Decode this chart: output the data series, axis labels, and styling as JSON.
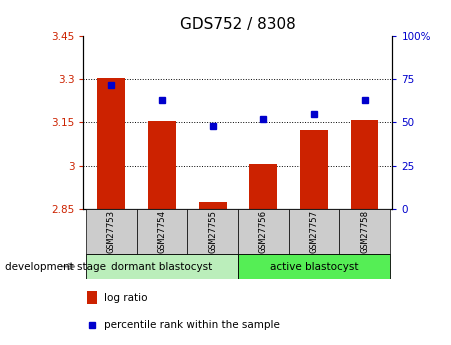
{
  "title": "GDS752 / 8308",
  "samples": [
    "GSM27753",
    "GSM27754",
    "GSM27755",
    "GSM27756",
    "GSM27757",
    "GSM27758"
  ],
  "log_ratio": [
    3.305,
    3.155,
    2.875,
    3.005,
    3.125,
    3.16
  ],
  "percentile_rank": [
    72,
    63,
    48,
    52,
    55,
    63
  ],
  "bar_baseline": 2.85,
  "ylim_left": [
    2.85,
    3.45
  ],
  "ylim_right": [
    0,
    100
  ],
  "yticks_left": [
    2.85,
    3.0,
    3.15,
    3.3,
    3.45
  ],
  "yticks_right": [
    0,
    25,
    50,
    75,
    100
  ],
  "ytick_labels_left": [
    "2.85",
    "3",
    "3.15",
    "3.3",
    "3.45"
  ],
  "ytick_labels_right": [
    "0",
    "25",
    "50",
    "75",
    "100%"
  ],
  "hlines": [
    3.0,
    3.15,
    3.3
  ],
  "bar_color": "#cc2200",
  "scatter_color": "#0000cc",
  "group1_label": "dormant blastocyst",
  "group2_label": "active blastocyst",
  "group1_indices": [
    0,
    1,
    2
  ],
  "group2_indices": [
    3,
    4,
    5
  ],
  "group1_color": "#bbeebb",
  "group2_color": "#55ee55",
  "xtick_bg_color": "#cccccc",
  "stage_label": "development stage",
  "legend_bar_label": "log ratio",
  "legend_scatter_label": "percentile rank within the sample",
  "title_fontsize": 11,
  "axis_fontsize": 7.5,
  "bar_width": 0.55
}
